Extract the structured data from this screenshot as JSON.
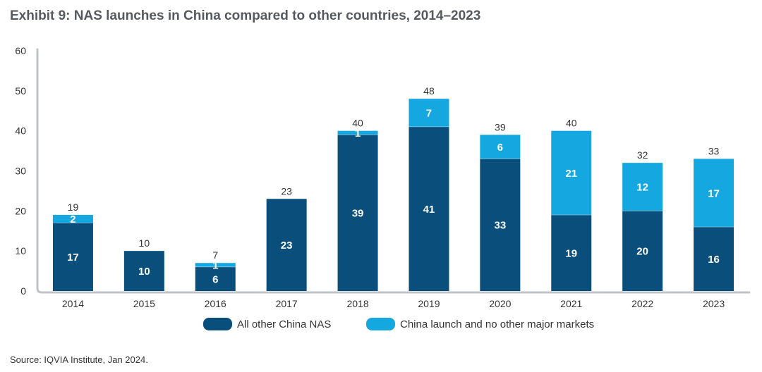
{
  "title": "Exhibit 9:  NAS launches in China compared to other countries, 2014–2023",
  "source": "Source: IQVIA Institute, Jan 2024.",
  "colors": {
    "series_dark": "#0a4f7c",
    "series_light": "#15a7e0",
    "axis": "#bfc3c7"
  },
  "chart_data": {
    "type": "bar",
    "stacked": true,
    "categories": [
      "2014",
      "2015",
      "2016",
      "2017",
      "2018",
      "2019",
      "2020",
      "2021",
      "2022",
      "2023"
    ],
    "series": [
      {
        "name": "All other China NAS",
        "values": [
          17,
          10,
          6,
          23,
          39,
          41,
          33,
          19,
          20,
          16
        ]
      },
      {
        "name": "China launch and no other major markets",
        "values": [
          2,
          0,
          1,
          0,
          1,
          7,
          6,
          21,
          12,
          17
        ]
      }
    ],
    "totals": [
      19,
      10,
      7,
      23,
      40,
      48,
      39,
      40,
      32,
      33
    ],
    "ylim": [
      0,
      60
    ],
    "yticks": [
      0,
      10,
      20,
      30,
      40,
      50,
      60
    ],
    "grid": false,
    "legend_position": "bottom"
  }
}
